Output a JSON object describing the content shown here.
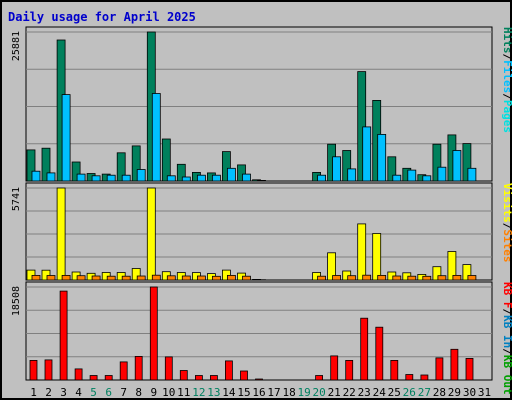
{
  "colors": {
    "hits": "#00805c",
    "files": "#00c0ff",
    "pages": "#00e0e0",
    "visits": "#ffff00",
    "sites": "#ff8000",
    "kb_in": "#0080c0",
    "kb_out": "#00a000",
    "kb_f": "#ff0000",
    "weekday_label": "#000000",
    "weekend_label": "#008060",
    "title": "#0000cc"
  },
  "chart_data": {
    "type": "bar",
    "title": "Daily usage for April 2025",
    "categories": [
      "1",
      "2",
      "3",
      "4",
      "5",
      "6",
      "7",
      "8",
      "9",
      "10",
      "11",
      "12",
      "13",
      "14",
      "15",
      "16",
      "17",
      "18",
      "19",
      "20",
      "21",
      "22",
      "23",
      "24",
      "25",
      "26",
      "27",
      "28",
      "29",
      "30",
      "31"
    ],
    "weekend_days": [
      "5",
      "6",
      "12",
      "13",
      "19",
      "20",
      "26",
      "27"
    ],
    "panels": [
      {
        "id": "top",
        "ymax_label": "25881",
        "ylim": [
          0,
          25881
        ],
        "right_label": [
          {
            "text": "Hits",
            "color_key": "hits"
          },
          {
            "text": "/",
            "color_key": "weekday_label"
          },
          {
            "text": "Files",
            "color_key": "files"
          },
          {
            "text": "/",
            "color_key": "weekday_label"
          },
          {
            "text": "Pages",
            "color_key": "pages"
          }
        ],
        "series": [
          {
            "name": "Hits",
            "color_key": "hits",
            "values": [
              5400,
              5700,
              24500,
              3300,
              1300,
              1200,
              4900,
              6100,
              26000,
              7300,
              2900,
              1500,
              1400,
              5100,
              2800,
              200,
              0,
              0,
              0,
              1500,
              6400,
              5300,
              19000,
              14000,
              4200,
              2200,
              1100,
              6400,
              8000,
              6500,
              0
            ]
          },
          {
            "name": "Files",
            "color_key": "files",
            "values": [
              1700,
              1400,
              15000,
              1200,
              900,
              1000,
              1000,
              2000,
              15200,
              900,
              700,
              1000,
              1000,
              2200,
              1200,
              100,
              0,
              0,
              0,
              1000,
              4200,
              2100,
              9400,
              8100,
              1000,
              1900,
              900,
              2400,
              5300,
              2200,
              0
            ]
          }
        ]
      },
      {
        "id": "middle",
        "ymax_label": "5741",
        "ylim": [
          0,
          5741
        ],
        "right_label": [
          {
            "text": "Visits",
            "color_key": "visits"
          },
          {
            "text": "/",
            "color_key": "weekday_label"
          },
          {
            "text": "Sites",
            "color_key": "sites"
          }
        ],
        "series": [
          {
            "name": "Visits",
            "color_key": "visits",
            "values": [
              620,
              610,
              5741,
              500,
              420,
              470,
              470,
              720,
              5741,
              520,
              470,
              460,
              400,
              620,
              430,
              40,
              0,
              0,
              0,
              470,
              1700,
              560,
              3500,
              2900,
              500,
              450,
              350,
              830,
              1780,
              960,
              0
            ]
          },
          {
            "name": "Sites",
            "color_key": "sites",
            "values": [
              290,
              280,
              290,
              270,
              250,
              240,
              240,
              250,
              300,
              260,
              250,
              250,
              230,
              290,
              240,
              20,
              0,
              0,
              0,
              240,
              280,
              270,
              300,
              290,
              250,
              240,
              230,
              270,
              290,
              280,
              0
            ]
          }
        ]
      },
      {
        "id": "bottom",
        "ymax_label": "18508",
        "ylim": [
          0,
          18508
        ],
        "right_label": [
          {
            "text": "KB F",
            "color_key": "kb_f"
          },
          {
            "text": "/",
            "color_key": "weekday_label"
          },
          {
            "text": "KB In",
            "color_key": "kb_in"
          },
          {
            "text": "/",
            "color_key": "weekday_label"
          },
          {
            "text": "KB Out",
            "color_key": "kb_out"
          }
        ],
        "series": [
          {
            "name": "KB F",
            "color_key": "kb_f",
            "values": [
              3900,
              4000,
              17700,
              2200,
              900,
              900,
              3600,
              4700,
              18508,
              4600,
              1900,
              900,
              900,
              3800,
              1800,
              200,
              0,
              0,
              0,
              900,
              4800,
              3900,
              12300,
              10500,
              3900,
              1100,
              1000,
              4400,
              6100,
              4300,
              0
            ]
          }
        ]
      }
    ]
  }
}
